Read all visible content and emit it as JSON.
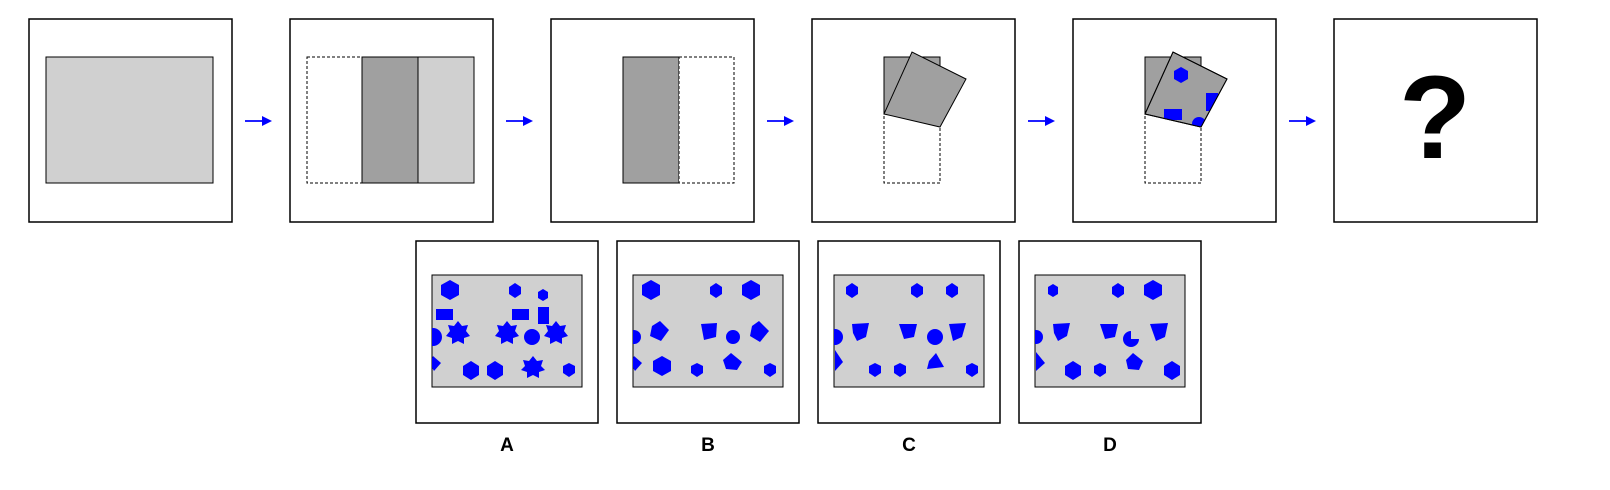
{
  "question_mark": "?",
  "options": [
    {
      "label": "A"
    },
    {
      "label": "B"
    },
    {
      "label": "C"
    },
    {
      "label": "D"
    }
  ],
  "colors": {
    "paper": "#d0d0d0",
    "folded": "#a0a0a0",
    "punch": "#0000ff",
    "arrow": "#0000ff"
  }
}
